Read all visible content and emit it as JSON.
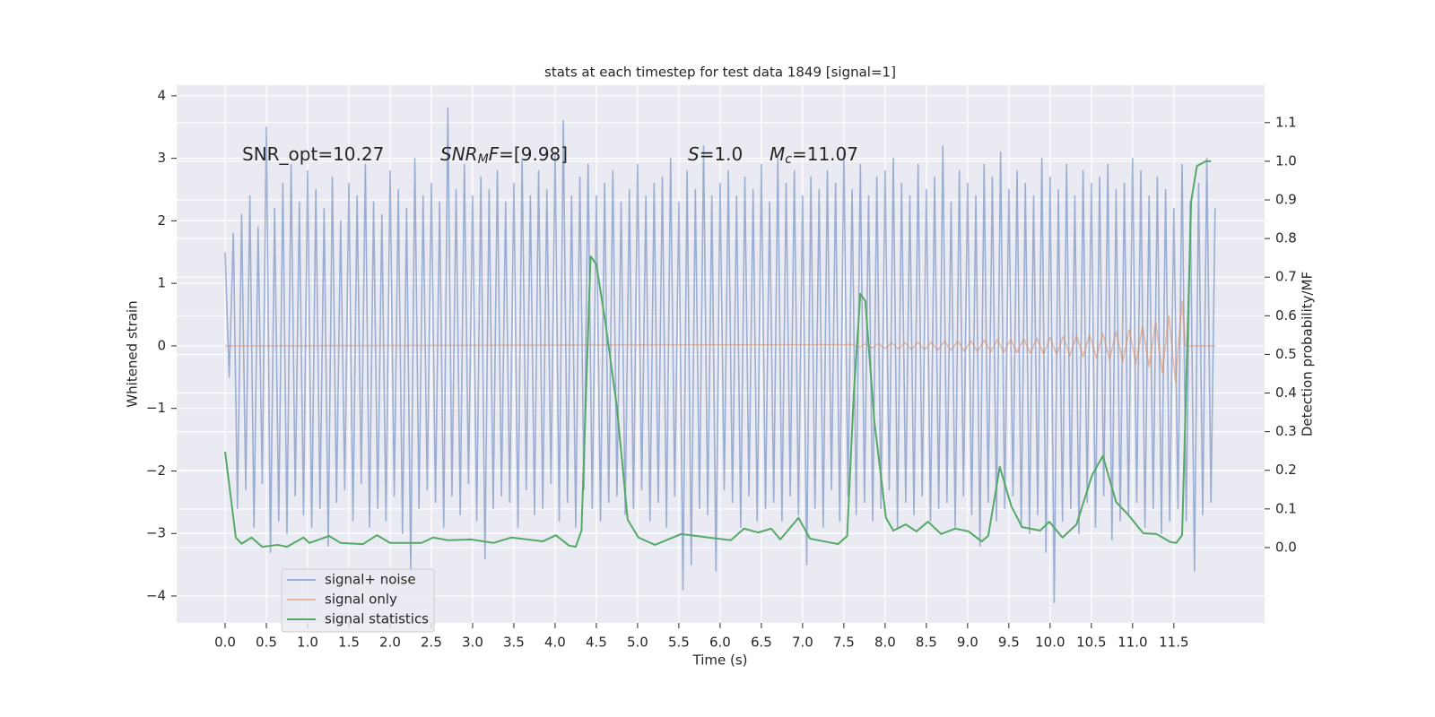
{
  "chart_data": {
    "type": "line",
    "title": "stats at each timestep for test data 1849 [signal=1]",
    "xlabel": "Time (s)",
    "ylabel": "Whitened strain",
    "y2label": "Detection probability/MF",
    "xlim": [
      -0.587,
      12.6
    ],
    "ylim": [
      -4.43,
      4.17
    ],
    "y2lim": [
      -0.195,
      1.197
    ],
    "xticks": [
      {
        "value": 0,
        "label": "0.0"
      },
      0.5,
      {
        "value": 1,
        "label": "1.0"
      },
      1.5,
      {
        "value": 2,
        "label": "2.0"
      },
      2.5,
      {
        "value": 3,
        "label": "3.0"
      },
      3.5,
      {
        "value": 4,
        "label": "4.0"
      },
      4.5,
      {
        "value": 5,
        "label": "5.0"
      },
      5.5,
      {
        "value": 6,
        "label": "6.0"
      },
      6.5,
      {
        "value": 7,
        "label": "7.0"
      },
      7.5,
      {
        "value": 8,
        "label": "8.0"
      },
      8.5,
      {
        "value": 9,
        "label": "9.0"
      },
      9.5,
      {
        "value": 10,
        "label": "10.0"
      },
      10.5,
      {
        "value": 11,
        "label": "11.0"
      },
      11.5
    ],
    "yticks": [
      {
        "value": -4,
        "label": "−4"
      },
      {
        "value": -3,
        "label": "−3"
      },
      {
        "value": -2,
        "label": "−2"
      },
      {
        "value": -1,
        "label": "−1"
      },
      0,
      1,
      2,
      3,
      4
    ],
    "y2ticks": [
      {
        "value": 0,
        "label": "0.0"
      },
      0.1,
      0.2,
      0.3,
      0.4,
      0.5,
      0.6,
      0.7,
      0.8,
      0.9,
      {
        "value": 1,
        "label": "1.0"
      },
      1.1
    ],
    "grid": true,
    "legend": "lower left",
    "annotations": [
      {
        "parts": [
          {
            "text": "SNR_opt=10.27",
            "style": "normal"
          }
        ]
      },
      {
        "parts": [
          {
            "text": "SNR",
            "style": "italic"
          },
          {
            "text": "M",
            "style": "italic-sub"
          },
          {
            "text": "F",
            "style": "italic"
          },
          {
            "text": "=[9.98]",
            "style": "normal"
          }
        ]
      },
      {
        "parts": [
          {
            "text": "S",
            "style": "italic"
          },
          {
            "text": "=1.0",
            "style": "normal"
          }
        ]
      },
      {
        "parts": [
          {
            "text": "M",
            "style": "italic"
          },
          {
            "text": "c",
            "style": "italic-sub"
          },
          {
            "text": "=11.07",
            "style": "normal"
          }
        ]
      }
    ],
    "series": [
      {
        "name": "signal+ noise",
        "color": "#4c72b0",
        "alpha": 0.5,
        "x": [
          0,
          0.05,
          0.1,
          0.15,
          0.2,
          0.25,
          0.3,
          0.35,
          0.4,
          0.45,
          0.5,
          0.55,
          0.6,
          0.65,
          0.7,
          0.75,
          0.8,
          0.85,
          0.9,
          0.95,
          1,
          1.05,
          1.1,
          1.15,
          1.2,
          1.25,
          1.3,
          1.35,
          1.4,
          1.45,
          1.5,
          1.55,
          1.6,
          1.65,
          1.7,
          1.75,
          1.8,
          1.85,
          1.9,
          1.95,
          2,
          2.05,
          2.1,
          2.15,
          2.2,
          2.25,
          2.3,
          2.35,
          2.4,
          2.45,
          2.5,
          2.55,
          2.6,
          2.65,
          2.7,
          2.75,
          2.8,
          2.85,
          2.9,
          2.95,
          3,
          3.05,
          3.1,
          3.15,
          3.2,
          3.25,
          3.3,
          3.35,
          3.4,
          3.45,
          3.5,
          3.55,
          3.6,
          3.65,
          3.7,
          3.75,
          3.8,
          3.85,
          3.9,
          3.95,
          4,
          4.05,
          4.1,
          4.15,
          4.2,
          4.25,
          4.3,
          4.35,
          4.4,
          4.45,
          4.5,
          4.55,
          4.6,
          4.65,
          4.7,
          4.75,
          4.8,
          4.85,
          4.9,
          4.95,
          5,
          5.05,
          5.1,
          5.15,
          5.2,
          5.25,
          5.3,
          5.35,
          5.4,
          5.45,
          5.5,
          5.55,
          5.6,
          5.65,
          5.7,
          5.75,
          5.8,
          5.85,
          5.9,
          5.95,
          6,
          6.05,
          6.1,
          6.15,
          6.2,
          6.25,
          6.3,
          6.35,
          6.4,
          6.45,
          6.5,
          6.55,
          6.6,
          6.65,
          6.7,
          6.75,
          6.8,
          6.85,
          6.9,
          6.95,
          7,
          7.05,
          7.1,
          7.15,
          7.2,
          7.25,
          7.3,
          7.35,
          7.4,
          7.45,
          7.5,
          7.55,
          7.6,
          7.65,
          7.7,
          7.75,
          7.8,
          7.85,
          7.9,
          7.95,
          8,
          8.05,
          8.1,
          8.15,
          8.2,
          8.25,
          8.3,
          8.35,
          8.4,
          8.45,
          8.5,
          8.55,
          8.6,
          8.65,
          8.7,
          8.75,
          8.8,
          8.85,
          8.9,
          8.95,
          9,
          9.05,
          9.1,
          9.15,
          9.2,
          9.25,
          9.3,
          9.35,
          9.4,
          9.45,
          9.5,
          9.55,
          9.6,
          9.65,
          9.7,
          9.75,
          9.8,
          9.85,
          9.9,
          9.95,
          10,
          10.05,
          10.1,
          10.15,
          10.2,
          10.25,
          10.3,
          10.35,
          10.4,
          10.45,
          10.5,
          10.55,
          10.6,
          10.65,
          10.7,
          10.75,
          10.8,
          10.85,
          10.9,
          10.95,
          11,
          11.05,
          11.1,
          11.15,
          11.2,
          11.25,
          11.3,
          11.35,
          11.4,
          11.45,
          11.5,
          11.55,
          11.6,
          11.65,
          11.7,
          11.75,
          11.8,
          11.85,
          11.9,
          11.95,
          12
        ],
        "values": [
          1.5,
          -0.5,
          1.8,
          -2.6,
          2.1,
          -2.3,
          2.4,
          -2.9,
          1.9,
          -2.2,
          3.5,
          -3.3,
          2.2,
          -2.8,
          2.6,
          -3.0,
          2.9,
          -2.4,
          2.3,
          -2.7,
          2.8,
          -2.9,
          2.5,
          -2.6,
          2.2,
          -3.2,
          2.7,
          -2.5,
          2.0,
          -2.3,
          2.6,
          -2.8,
          2.4,
          -2.2,
          2.9,
          -2.9,
          2.3,
          -2.6,
          2.1,
          -2.8,
          2.8,
          -2.4,
          2.5,
          -3.0,
          2.2,
          -3.6,
          3.0,
          -2.6,
          2.4,
          -2.3,
          2.6,
          -2.5,
          2.3,
          -2.9,
          3.8,
          -2.4,
          2.5,
          -2.7,
          2.9,
          -2.2,
          2.4,
          -2.8,
          2.7,
          -3.4,
          2.5,
          -2.6,
          2.8,
          -2.4,
          2.3,
          -2.5,
          2.6,
          -2.9,
          3.0,
          -2.3,
          2.4,
          -2.7,
          2.8,
          -2.6,
          2.5,
          -2.2,
          3.1,
          -2.8,
          3.6,
          -2.5,
          2.4,
          -2.9,
          2.7,
          -2.3,
          2.9,
          -2.6,
          2.4,
          -2.8,
          2.6,
          -2.5,
          2.8,
          -2.4,
          2.3,
          -2.7,
          2.5,
          -2.6,
          2.9,
          -2.3,
          2.4,
          -2.8,
          2.6,
          -2.5,
          2.7,
          -2.9,
          3.0,
          -2.4,
          2.3,
          -3.9,
          2.8,
          -3.5,
          2.5,
          -2.6,
          3.2,
          -2.7,
          2.4,
          -3.6,
          2.6,
          -2.3,
          2.8,
          -2.5,
          2.4,
          -2.9,
          2.7,
          -2.4,
          2.5,
          -2.8,
          2.9,
          -2.6,
          2.3,
          -2.5,
          3.0,
          -2.8,
          2.6,
          -2.4,
          2.8,
          -2.7,
          2.4,
          -3.5,
          2.7,
          -2.6,
          2.5,
          -2.9,
          2.8,
          -2.3,
          2.6,
          -2.8,
          3.1,
          -2.4,
          2.5,
          -2.7,
          2.9,
          -2.5,
          2.4,
          -2.8,
          2.7,
          -2.6,
          2.8,
          -2.3,
          3.0,
          -2.9,
          2.6,
          -2.5,
          2.4,
          -2.7,
          2.9,
          -2.4,
          2.5,
          -2.8,
          2.7,
          -2.6,
          3.2,
          -2.5,
          2.3,
          -2.9,
          2.8,
          -2.4,
          2.6,
          -2.7,
          2.4,
          -3.2,
          2.9,
          -2.5,
          2.7,
          -2.8,
          3.1,
          -2.6,
          2.5,
          -2.4,
          2.8,
          -2.9,
          2.6,
          -3.0,
          2.4,
          -2.7,
          3.0,
          -3.3,
          2.7,
          -4.1,
          2.5,
          -2.8,
          2.9,
          -2.6,
          2.4,
          -3.0,
          2.8,
          -2.5,
          2.6,
          -2.9,
          2.7,
          -2.4,
          2.9,
          -3.1,
          2.5,
          -2.8,
          2.6,
          -2.7,
          3.0,
          -2.5,
          2.8,
          -2.9,
          2.4,
          -2.6,
          2.7,
          -3.0,
          2.5,
          -2.8,
          2.2,
          -2.6,
          2.9,
          -2.8,
          2.3,
          -3.6,
          2.6,
          -2.7,
          3.0,
          -2.5,
          2.2
        ]
      },
      {
        "name": "signal only",
        "color": "#dd8452",
        "alpha": 0.5,
        "x": [
          0,
          7.6,
          7.68,
          7.76,
          7.84,
          7.92,
          8,
          8.08,
          8.16,
          8.24,
          8.32,
          8.4,
          8.48,
          8.56,
          8.64,
          8.72,
          8.8,
          8.88,
          8.96,
          9.04,
          9.12,
          9.2,
          9.28,
          9.36,
          9.44,
          9.52,
          9.6,
          9.68,
          9.76,
          9.84,
          9.92,
          10,
          10.08,
          10.16,
          10.24,
          10.32,
          10.4,
          10.48,
          10.56,
          10.64,
          10.72,
          10.8,
          10.88,
          10.96,
          11.04,
          11.12,
          11.2,
          11.28,
          11.36,
          11.44,
          11.52,
          11.6,
          11.64,
          12
        ],
        "values": [
          0,
          0.02,
          -0.025,
          0.03,
          -0.03,
          0.035,
          -0.04,
          0.045,
          -0.045,
          0.05,
          -0.05,
          0.055,
          -0.06,
          0.06,
          -0.065,
          0.07,
          -0.07,
          0.075,
          -0.08,
          0.08,
          -0.085,
          0.09,
          -0.09,
          0.095,
          -0.1,
          0.1,
          -0.105,
          0.11,
          -0.115,
          0.12,
          -0.125,
          0.13,
          -0.14,
          0.15,
          -0.155,
          0.16,
          -0.17,
          0.18,
          -0.19,
          0.2,
          -0.22,
          0.23,
          -0.25,
          0.26,
          -0.28,
          0.31,
          -0.33,
          0.37,
          -0.42,
          0.48,
          -0.57,
          0.72,
          0,
          0
        ]
      },
      {
        "name": "signal statistics",
        "color": "#55a868",
        "axis": "y2",
        "x": [
          0,
          0.13,
          0.2,
          0.32,
          0.45,
          0.64,
          0.75,
          0.95,
          1.02,
          1.26,
          1.4,
          1.67,
          1.84,
          2,
          2.38,
          2.52,
          2.7,
          2.98,
          3.25,
          3.47,
          3.85,
          4.01,
          4.17,
          4.25,
          4.32,
          4.43,
          4.5,
          4.61,
          4.75,
          4.88,
          5.01,
          5.21,
          5.53,
          5.86,
          6.13,
          6.29,
          6.46,
          6.62,
          6.73,
          6.84,
          6.95,
          7.09,
          7.43,
          7.54,
          7.62,
          7.7,
          7.76,
          7.87,
          8.01,
          8.1,
          8.25,
          8.38,
          8.52,
          8.68,
          8.85,
          9.01,
          9.17,
          9.25,
          9.39,
          9.53,
          9.66,
          9.88,
          9.99,
          10.15,
          10.32,
          10.51,
          10.64,
          10.8,
          10.95,
          11.13,
          11.29,
          11.46,
          11.53,
          11.6,
          11.71,
          11.78,
          11.89,
          11.95
        ],
        "values": [
          0.248,
          0.026,
          0.01,
          0.026,
          0.002,
          0.007,
          0.002,
          0.026,
          0.012,
          0.03,
          0.012,
          0.009,
          0.032,
          0.012,
          0.012,
          0.026,
          0.019,
          0.021,
          0.012,
          0.026,
          0.016,
          0.032,
          0.005,
          0.002,
          0.044,
          0.754,
          0.733,
          0.582,
          0.362,
          0.072,
          0.026,
          0.007,
          0.035,
          0.026,
          0.019,
          0.049,
          0.039,
          0.049,
          0.021,
          0.049,
          0.077,
          0.023,
          0.009,
          0.03,
          0.397,
          0.657,
          0.638,
          0.327,
          0.077,
          0.044,
          0.06,
          0.042,
          0.067,
          0.035,
          0.049,
          0.042,
          0.016,
          0.03,
          0.209,
          0.107,
          0.053,
          0.044,
          0.067,
          0.026,
          0.06,
          0.188,
          0.237,
          0.118,
          0.084,
          0.037,
          0.035,
          0.014,
          0.012,
          0.032,
          0.896,
          0.988,
          1.0,
          1.0
        ]
      }
    ]
  }
}
